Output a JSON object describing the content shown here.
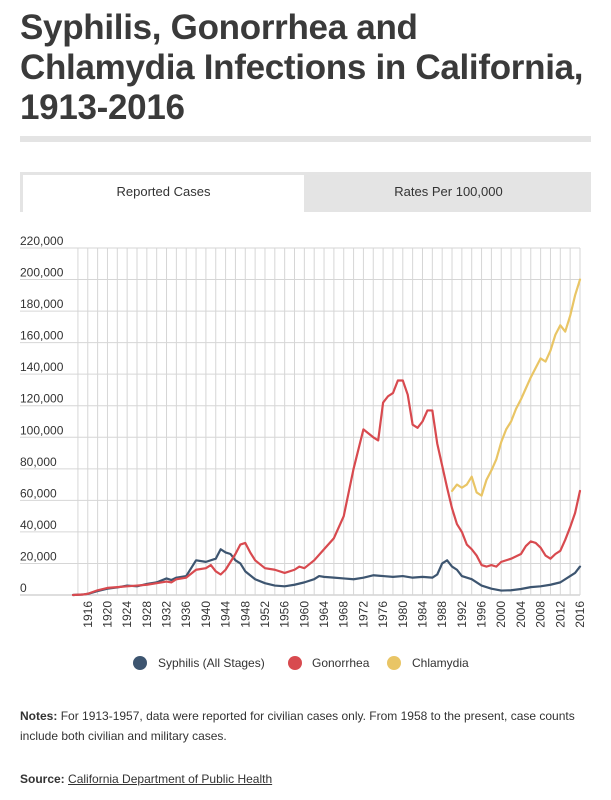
{
  "header": {
    "title": "Syphilis, Gonorrhea and Chlamydia Infections in California, 1913-2016"
  },
  "tabs": [
    {
      "label": "Reported Cases",
      "active": true
    },
    {
      "label": "Rates Per 100,000",
      "active": false
    }
  ],
  "chart_data": {
    "type": "line",
    "title": "",
    "xlabel": "",
    "ylabel": "",
    "xlim": [
      1913,
      2016
    ],
    "ylim": [
      0,
      220000
    ],
    "yticks": [
      "0",
      "20,000",
      "40,000",
      "60,000",
      "80,000",
      "100,000",
      "120,000",
      "140,000",
      "160,000",
      "180,000",
      "200,000",
      "220,000"
    ],
    "xticks": [
      "1916",
      "1920",
      "1924",
      "1928",
      "1932",
      "1936",
      "1940",
      "1944",
      "1948",
      "1952",
      "1956",
      "1960",
      "1964",
      "1968",
      "1972",
      "1976",
      "1980",
      "1984",
      "1988",
      "1992",
      "1996",
      "2000",
      "2004",
      "2008",
      "2012",
      "2016"
    ],
    "grid": true,
    "legend_position": "bottom-center",
    "series": [
      {
        "name": "Syphilis (All Stages)",
        "color": "#3d5570",
        "points": [
          [
            1913,
            0
          ],
          [
            1915,
            300
          ],
          [
            1916,
            700
          ],
          [
            1918,
            2500
          ],
          [
            1920,
            4000
          ],
          [
            1922,
            4800
          ],
          [
            1924,
            6000
          ],
          [
            1926,
            5500
          ],
          [
            1928,
            7000
          ],
          [
            1930,
            8000
          ],
          [
            1932,
            10500
          ],
          [
            1933,
            9500
          ],
          [
            1934,
            11000
          ],
          [
            1936,
            12000
          ],
          [
            1938,
            22000
          ],
          [
            1940,
            21000
          ],
          [
            1942,
            23000
          ],
          [
            1943,
            29000
          ],
          [
            1944,
            27000
          ],
          [
            1945,
            26000
          ],
          [
            1946,
            22000
          ],
          [
            1947,
            20000
          ],
          [
            1948,
            15000
          ],
          [
            1950,
            10000
          ],
          [
            1952,
            7500
          ],
          [
            1954,
            6000
          ],
          [
            1956,
            5500
          ],
          [
            1958,
            6500
          ],
          [
            1960,
            8000
          ],
          [
            1962,
            10000
          ],
          [
            1963,
            12000
          ],
          [
            1964,
            11500
          ],
          [
            1966,
            11000
          ],
          [
            1968,
            10500
          ],
          [
            1970,
            10000
          ],
          [
            1972,
            11000
          ],
          [
            1974,
            12500
          ],
          [
            1976,
            12000
          ],
          [
            1978,
            11500
          ],
          [
            1980,
            12000
          ],
          [
            1982,
            11000
          ],
          [
            1984,
            11500
          ],
          [
            1986,
            11000
          ],
          [
            1987,
            13000
          ],
          [
            1988,
            20000
          ],
          [
            1989,
            22000
          ],
          [
            1990,
            18000
          ],
          [
            1991,
            16000
          ],
          [
            1992,
            12000
          ],
          [
            1994,
            10000
          ],
          [
            1996,
            6000
          ],
          [
            1998,
            4000
          ],
          [
            2000,
            2800
          ],
          [
            2002,
            3000
          ],
          [
            2004,
            3800
          ],
          [
            2006,
            5000
          ],
          [
            2008,
            5500
          ],
          [
            2010,
            6500
          ],
          [
            2012,
            8000
          ],
          [
            2014,
            12000
          ],
          [
            2015,
            14000
          ],
          [
            2016,
            18000
          ]
        ]
      },
      {
        "name": "Gonorrhea",
        "color": "#d84a4f",
        "points": [
          [
            1913,
            0
          ],
          [
            1915,
            300
          ],
          [
            1916,
            800
          ],
          [
            1918,
            3000
          ],
          [
            1920,
            4500
          ],
          [
            1922,
            5000
          ],
          [
            1924,
            5500
          ],
          [
            1926,
            6000
          ],
          [
            1928,
            6500
          ],
          [
            1930,
            7500
          ],
          [
            1932,
            8500
          ],
          [
            1933,
            8000
          ],
          [
            1934,
            10000
          ],
          [
            1936,
            11000
          ],
          [
            1938,
            16000
          ],
          [
            1940,
            17000
          ],
          [
            1941,
            19000
          ],
          [
            1942,
            15000
          ],
          [
            1943,
            13000
          ],
          [
            1944,
            16000
          ],
          [
            1946,
            26000
          ],
          [
            1947,
            32000
          ],
          [
            1948,
            33000
          ],
          [
            1949,
            27000
          ],
          [
            1950,
            22000
          ],
          [
            1952,
            17000
          ],
          [
            1954,
            16000
          ],
          [
            1956,
            14000
          ],
          [
            1958,
            16000
          ],
          [
            1959,
            18000
          ],
          [
            1960,
            17000
          ],
          [
            1962,
            22000
          ],
          [
            1964,
            29000
          ],
          [
            1966,
            36000
          ],
          [
            1968,
            50000
          ],
          [
            1970,
            80000
          ],
          [
            1972,
            105000
          ],
          [
            1974,
            100000
          ],
          [
            1975,
            98000
          ],
          [
            1976,
            122000
          ],
          [
            1977,
            126000
          ],
          [
            1978,
            128000
          ],
          [
            1979,
            136000
          ],
          [
            1980,
            136000
          ],
          [
            1981,
            127000
          ],
          [
            1982,
            108000
          ],
          [
            1983,
            106000
          ],
          [
            1984,
            110000
          ],
          [
            1985,
            117000
          ],
          [
            1986,
            117000
          ],
          [
            1987,
            96000
          ],
          [
            1988,
            82000
          ],
          [
            1989,
            68000
          ],
          [
            1990,
            55000
          ],
          [
            1991,
            45000
          ],
          [
            1992,
            40000
          ],
          [
            1993,
            32000
          ],
          [
            1994,
            29000
          ],
          [
            1995,
            25000
          ],
          [
            1996,
            19000
          ],
          [
            1997,
            18000
          ],
          [
            1998,
            19000
          ],
          [
            1999,
            18000
          ],
          [
            2000,
            21000
          ],
          [
            2002,
            23000
          ],
          [
            2004,
            26000
          ],
          [
            2005,
            31000
          ],
          [
            2006,
            34000
          ],
          [
            2007,
            33000
          ],
          [
            2008,
            30000
          ],
          [
            2009,
            25000
          ],
          [
            2010,
            23000
          ],
          [
            2011,
            26000
          ],
          [
            2012,
            28000
          ],
          [
            2013,
            35000
          ],
          [
            2014,
            43000
          ],
          [
            2015,
            52000
          ],
          [
            2016,
            66000
          ]
        ]
      },
      {
        "name": "Chlamydia",
        "color": "#e9c565",
        "points": [
          [
            1990,
            66000
          ],
          [
            1991,
            70000
          ],
          [
            1992,
            68000
          ],
          [
            1993,
            70000
          ],
          [
            1994,
            75000
          ],
          [
            1995,
            65000
          ],
          [
            1996,
            63000
          ],
          [
            1997,
            73000
          ],
          [
            1998,
            79000
          ],
          [
            1999,
            86000
          ],
          [
            2000,
            97000
          ],
          [
            2001,
            105000
          ],
          [
            2002,
            110000
          ],
          [
            2003,
            118000
          ],
          [
            2004,
            124000
          ],
          [
            2005,
            131000
          ],
          [
            2006,
            138000
          ],
          [
            2007,
            144000
          ],
          [
            2008,
            150000
          ],
          [
            2009,
            148000
          ],
          [
            2010,
            155000
          ],
          [
            2011,
            165000
          ],
          [
            2012,
            171000
          ],
          [
            2013,
            167000
          ],
          [
            2014,
            177000
          ],
          [
            2015,
            190000
          ],
          [
            2016,
            200000
          ]
        ]
      }
    ]
  },
  "notes": {
    "label": "Notes:",
    "text": "For 1913-1957, data were reported for civilian cases only. From 1958 to the present, case counts include both civilian and military cases."
  },
  "source": {
    "label": "Source:",
    "link_text": "California Department of Public Health"
  }
}
